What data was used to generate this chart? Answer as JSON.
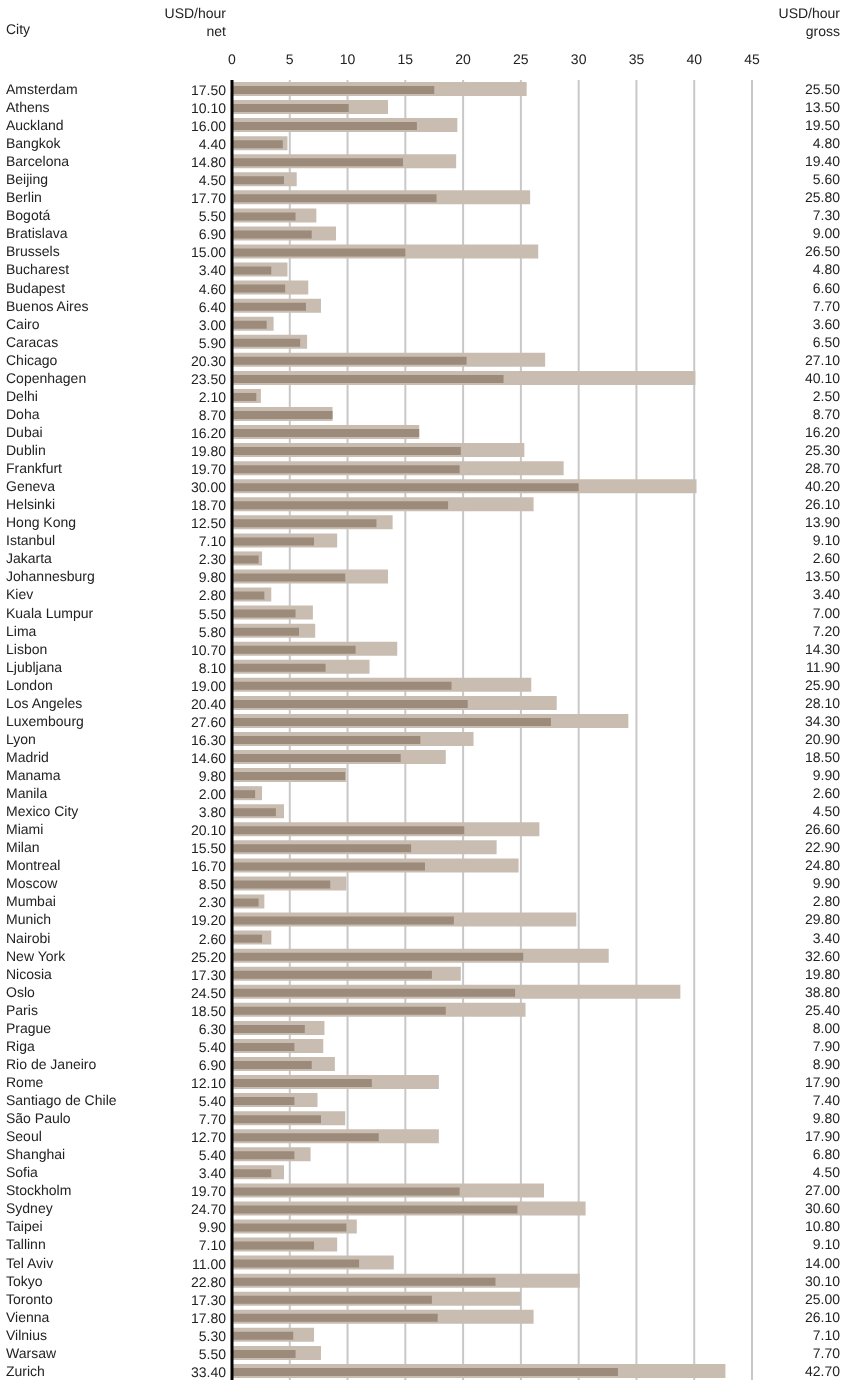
{
  "chart_data": {
    "type": "bar",
    "orientation": "horizontal",
    "ylabel": "City",
    "annotations": [
      "USD/hour net",
      "USD/hour gross"
    ],
    "grid": "x",
    "xlim": [
      0,
      45
    ],
    "xticks": [
      0,
      5,
      10,
      15,
      20,
      25,
      30,
      35,
      40,
      45
    ],
    "categories": [
      "Amsterdam",
      "Athens",
      "Auckland",
      "Bangkok",
      "Barcelona",
      "Beijing",
      "Berlin",
      "Bogotá",
      "Bratislava",
      "Brussels",
      "Bucharest",
      "Budapest",
      "Buenos Aires",
      "Cairo",
      "Caracas",
      "Chicago",
      "Copenhagen",
      "Delhi",
      "Doha",
      "Dubai",
      "Dublin",
      "Frankfurt",
      "Geneva",
      "Helsinki",
      "Hong Kong",
      "Istanbul",
      "Jakarta",
      "Johannesburg",
      "Kiev",
      "Kuala Lumpur",
      "Lima",
      "Lisbon",
      "Ljubljana",
      "London",
      "Los Angeles",
      "Luxembourg",
      "Lyon",
      "Madrid",
      "Manama",
      "Manila",
      "Mexico City",
      "Miami",
      "Milan",
      "Montreal",
      "Moscow",
      "Mumbai",
      "Munich",
      "Nairobi",
      "New York",
      "Nicosia",
      "Oslo",
      "Paris",
      "Prague",
      "Riga",
      "Rio de Janeiro",
      "Rome",
      "Santiago de Chile",
      "São Paulo",
      "Seoul",
      "Shanghai",
      "Sofia",
      "Stockholm",
      "Sydney",
      "Taipei",
      "Tallinn",
      "Tel Aviv",
      "Tokyo",
      "Toronto",
      "Vienna",
      "Vilnius",
      "Warsaw",
      "Zurich"
    ],
    "series": [
      {
        "color": "#9c8b7b",
        "values": [
          17.5,
          10.1,
          16.0,
          4.4,
          14.8,
          4.5,
          17.7,
          5.5,
          6.9,
          15.0,
          3.4,
          4.6,
          6.4,
          3.0,
          5.9,
          20.3,
          23.5,
          2.1,
          8.7,
          16.2,
          19.8,
          19.7,
          30.0,
          18.7,
          12.5,
          7.1,
          2.3,
          9.8,
          2.8,
          5.5,
          5.8,
          10.7,
          8.1,
          19.0,
          20.4,
          27.6,
          16.3,
          14.6,
          9.8,
          2.0,
          3.8,
          20.1,
          15.5,
          16.7,
          8.5,
          2.3,
          19.2,
          2.6,
          25.2,
          17.3,
          24.5,
          18.5,
          6.3,
          5.4,
          6.9,
          12.1,
          5.4,
          7.7,
          12.7,
          5.4,
          3.4,
          19.7,
          24.7,
          9.9,
          7.1,
          11.0,
          22.8,
          17.3,
          17.8,
          5.3,
          5.5,
          33.4
        ],
        "value_labels": [
          "17.50",
          "10.10",
          "16.00",
          "4.40",
          "14.80",
          "4.50",
          "17.70",
          "5.50",
          "6.90",
          "15.00",
          "3.40",
          "4.60",
          "6.40",
          "3.00",
          "5.90",
          "20.30",
          "23.50",
          "2.10",
          "8.70",
          "16.20",
          "19.80",
          "19.70",
          "30.00",
          "18.70",
          "12.50",
          "7.10",
          "2.30",
          "9.80",
          "2.80",
          "5.50",
          "5.80",
          "10.70",
          "8.10",
          "19.00",
          "20.40",
          "27.60",
          "16.30",
          "14.60",
          "9.80",
          "2.00",
          "3.80",
          "20.10",
          "15.50",
          "16.70",
          "8.50",
          "2.30",
          "19.20",
          "2.60",
          "25.20",
          "17.30",
          "24.50",
          "18.50",
          "6.30",
          "5.40",
          "6.90",
          "12.10",
          "5.40",
          "7.70",
          "12.70",
          "5.40",
          "3.40",
          "19.70",
          "24.70",
          "9.90",
          "7.10",
          "11.00",
          "22.80",
          "17.30",
          "17.80",
          "5.30",
          "5.50",
          "33.40"
        ]
      },
      {
        "color": "#c9bcb1",
        "values": [
          25.5,
          13.5,
          19.5,
          4.8,
          19.4,
          5.6,
          25.8,
          7.3,
          9.0,
          26.5,
          4.8,
          6.6,
          7.7,
          3.6,
          6.5,
          27.1,
          40.1,
          2.5,
          8.7,
          16.2,
          25.3,
          28.7,
          40.2,
          26.1,
          13.9,
          9.1,
          2.6,
          13.5,
          3.4,
          7.0,
          7.2,
          14.3,
          11.9,
          25.9,
          28.1,
          34.3,
          20.9,
          18.5,
          9.9,
          2.6,
          4.5,
          26.6,
          22.9,
          24.8,
          9.9,
          2.8,
          29.8,
          3.4,
          32.6,
          19.8,
          38.8,
          25.4,
          8.0,
          7.9,
          8.9,
          17.9,
          7.4,
          9.8,
          17.9,
          6.8,
          4.5,
          27.0,
          30.6,
          10.8,
          9.1,
          14.0,
          30.1,
          25.0,
          26.1,
          7.1,
          7.7,
          42.7
        ],
        "value_labels": [
          "25.50",
          "13.50",
          "19.50",
          "4.80",
          "19.40",
          "5.60",
          "25.80",
          "7.30",
          "9.00",
          "26.50",
          "4.80",
          "6.60",
          "7.70",
          "3.60",
          "6.50",
          "27.10",
          "40.10",
          "2.50",
          "8.70",
          "16.20",
          "25.30",
          "28.70",
          "40.20",
          "26.10",
          "13.90",
          "9.10",
          "2.60",
          "13.50",
          "3.40",
          "7.00",
          "7.20",
          "14.30",
          "11.90",
          "25.90",
          "28.10",
          "34.30",
          "20.90",
          "18.50",
          "9.90",
          "2.60",
          "4.50",
          "26.60",
          "22.90",
          "24.80",
          "9.90",
          "2.80",
          "29.80",
          "3.40",
          "32.60",
          "19.80",
          "38.80",
          "25.40",
          "8.00",
          "7.90",
          "8.90",
          "17.90",
          "7.40",
          "9.80",
          "17.90",
          "6.80",
          "4.50",
          "27.00",
          "30.60",
          "10.80",
          "9.10",
          "14.00",
          "30.10",
          "25.00",
          "26.10",
          "7.10",
          "7.70",
          "42.70"
        ]
      }
    ]
  }
}
